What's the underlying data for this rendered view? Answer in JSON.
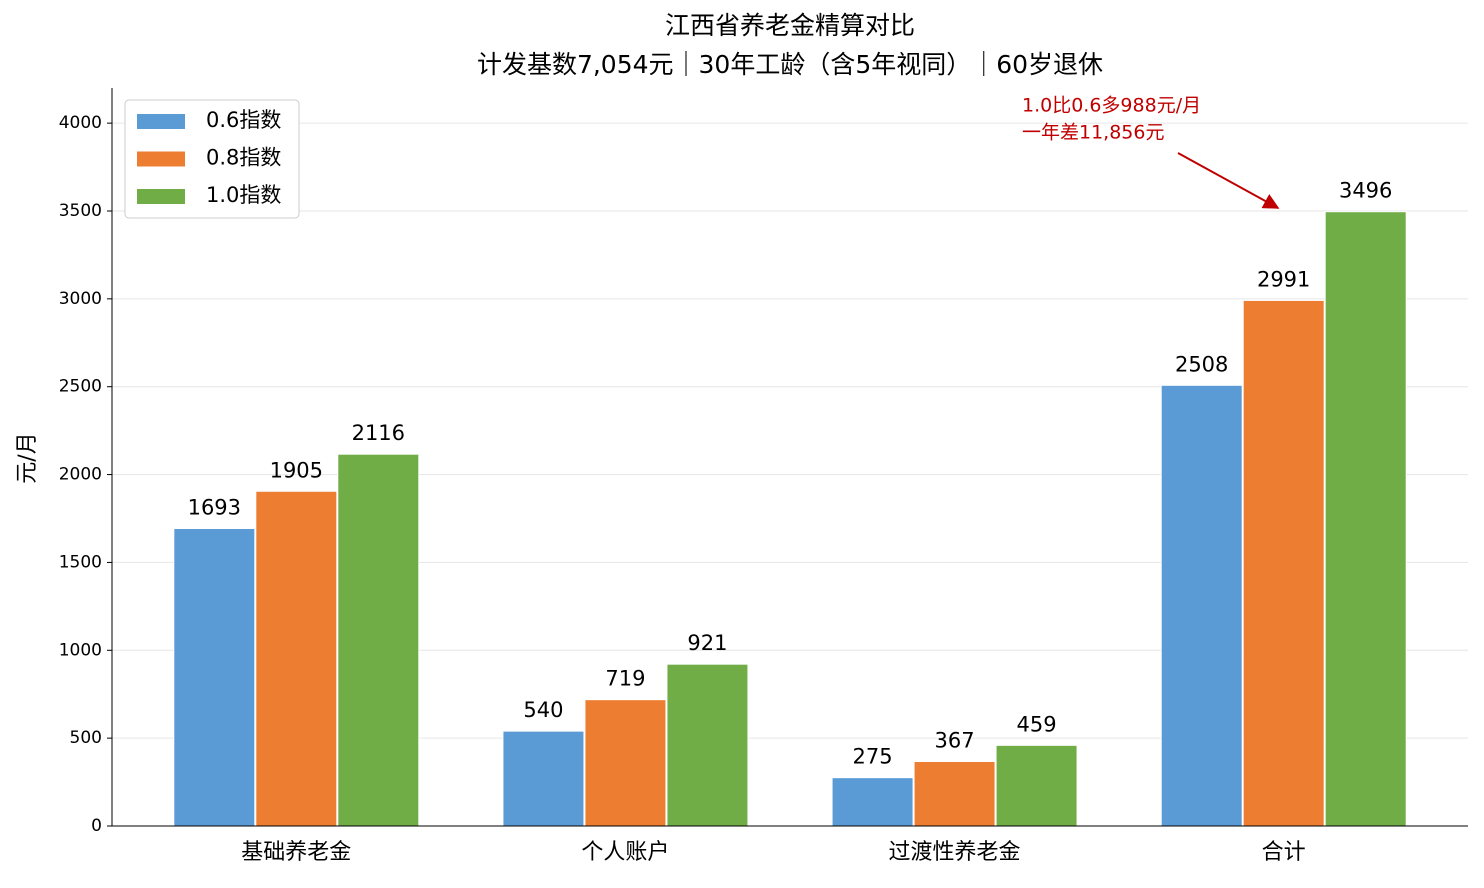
{
  "chart_data": {
    "type": "bar",
    "title": "江西省养老金精算对比",
    "subtitle": "计发基数7,054元｜30年工龄（含5年视同）｜60岁退休",
    "ylabel": "元/月",
    "categories": [
      "基础养老金",
      "个人账户",
      "过渡性养老金",
      "合计"
    ],
    "series": [
      {
        "name": "0.6指数",
        "color": "#5b9bd5",
        "values": [
          1693,
          540,
          275,
          2508
        ]
      },
      {
        "name": "0.8指数",
        "color": "#ed7d31",
        "values": [
          1905,
          719,
          367,
          2991
        ]
      },
      {
        "name": "1.0指数",
        "color": "#70ad47",
        "values": [
          2116,
          921,
          459,
          3496
        ]
      }
    ],
    "ylim": [
      0,
      4200
    ],
    "yticks": [
      0,
      500,
      1000,
      1500,
      2000,
      2500,
      3000,
      3500,
      4000
    ],
    "grid": true,
    "legend": "upper left",
    "annotation": [
      "1.0比0.6多988元/月",
      "一年差11,856元"
    ]
  }
}
